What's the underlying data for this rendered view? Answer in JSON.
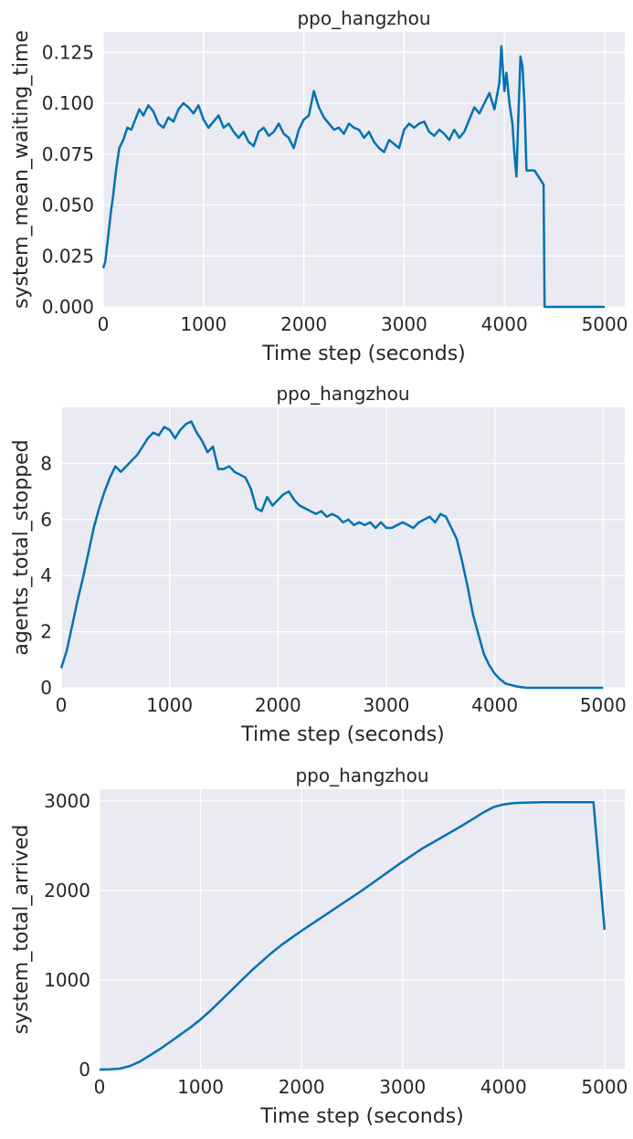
{
  "chart_data": [
    {
      "type": "line",
      "title": "ppo_hangzhou",
      "xlabel": "Time step (seconds)",
      "ylabel": "system_mean_waiting_time",
      "xlim": [
        0,
        5200
      ],
      "ylim": [
        0,
        0.135
      ],
      "xticks": [
        0,
        1000,
        2000,
        3000,
        4000,
        5000
      ],
      "xtick_labels": [
        "0",
        "1000",
        "2000",
        "3000",
        "4000",
        "5000"
      ],
      "yticks": [
        0,
        0.025,
        0.05,
        0.075,
        0.1,
        0.125
      ],
      "ytick_labels": [
        "0.000",
        "0.025",
        "0.050",
        "0.075",
        "0.100",
        "0.125"
      ],
      "grid": true,
      "color": "#0072b2",
      "series": [
        {
          "x": [
            0,
            20,
            50,
            80,
            100,
            130,
            160,
            200,
            240,
            280,
            320,
            360,
            400,
            450,
            500,
            550,
            600,
            650,
            700,
            750,
            800,
            850,
            900,
            950,
            1000,
            1050,
            1100,
            1150,
            1200,
            1250,
            1300,
            1350,
            1400,
            1450,
            1500,
            1550,
            1600,
            1650,
            1700,
            1750,
            1800,
            1850,
            1900,
            1950,
            2000,
            2050,
            2100,
            2150,
            2200,
            2250,
            2300,
            2350,
            2400,
            2450,
            2500,
            2550,
            2600,
            2650,
            2700,
            2750,
            2800,
            2850,
            2900,
            2950,
            3000,
            3050,
            3100,
            3150,
            3200,
            3250,
            3300,
            3350,
            3400,
            3450,
            3500,
            3550,
            3600,
            3650,
            3700,
            3750,
            3800,
            3850,
            3900,
            3950,
            3970,
            4000,
            4020,
            4050,
            4080,
            4100,
            4120,
            4140,
            4160,
            4180,
            4200,
            4220,
            4300,
            4390,
            4400,
            5000
          ],
          "y": [
            0.019,
            0.022,
            0.035,
            0.048,
            0.055,
            0.068,
            0.078,
            0.082,
            0.088,
            0.087,
            0.092,
            0.097,
            0.094,
            0.099,
            0.096,
            0.09,
            0.088,
            0.093,
            0.091,
            0.097,
            0.1,
            0.098,
            0.095,
            0.099,
            0.092,
            0.088,
            0.091,
            0.094,
            0.088,
            0.09,
            0.086,
            0.083,
            0.086,
            0.081,
            0.079,
            0.086,
            0.088,
            0.084,
            0.086,
            0.09,
            0.085,
            0.083,
            0.078,
            0.087,
            0.092,
            0.094,
            0.106,
            0.098,
            0.093,
            0.09,
            0.087,
            0.088,
            0.085,
            0.09,
            0.088,
            0.087,
            0.083,
            0.086,
            0.081,
            0.078,
            0.076,
            0.082,
            0.08,
            0.078,
            0.087,
            0.09,
            0.088,
            0.09,
            0.091,
            0.086,
            0.084,
            0.087,
            0.085,
            0.082,
            0.087,
            0.083,
            0.086,
            0.092,
            0.098,
            0.095,
            0.1,
            0.105,
            0.097,
            0.11,
            0.128,
            0.106,
            0.115,
            0.1,
            0.09,
            0.075,
            0.064,
            0.095,
            0.123,
            0.118,
            0.1,
            0.067,
            0.067,
            0.06,
            0.0,
            0.0
          ]
        }
      ]
    },
    {
      "type": "line",
      "title": "ppo_hangzhou",
      "xlabel": "Time step (seconds)",
      "ylabel": "agents_total_stopped",
      "xlim": [
        0,
        5200
      ],
      "ylim": [
        0,
        10
      ],
      "xticks": [
        0,
        1000,
        2000,
        3000,
        4000,
        5000
      ],
      "xtick_labels": [
        "0",
        "1000",
        "2000",
        "3000",
        "4000",
        "5000"
      ],
      "yticks": [
        0,
        2,
        4,
        6,
        8
      ],
      "ytick_labels": [
        "0",
        "2",
        "4",
        "6",
        "8"
      ],
      "grid": true,
      "color": "#0072b2",
      "series": [
        {
          "x": [
            0,
            50,
            100,
            150,
            200,
            250,
            300,
            350,
            400,
            450,
            500,
            550,
            600,
            650,
            700,
            750,
            800,
            850,
            900,
            950,
            1000,
            1050,
            1100,
            1150,
            1200,
            1250,
            1300,
            1350,
            1400,
            1450,
            1500,
            1550,
            1600,
            1650,
            1700,
            1750,
            1800,
            1850,
            1900,
            1950,
            2000,
            2050,
            2100,
            2150,
            2200,
            2250,
            2300,
            2350,
            2400,
            2450,
            2500,
            2550,
            2600,
            2650,
            2700,
            2750,
            2800,
            2850,
            2900,
            2950,
            3000,
            3050,
            3100,
            3150,
            3200,
            3250,
            3300,
            3350,
            3400,
            3450,
            3500,
            3550,
            3600,
            3650,
            3700,
            3750,
            3800,
            3850,
            3900,
            3950,
            4000,
            4050,
            4100,
            4150,
            4200,
            4250,
            4300,
            4400,
            5000
          ],
          "y": [
            0.7,
            1.3,
            2.2,
            3.1,
            3.9,
            4.8,
            5.7,
            6.4,
            7.0,
            7.5,
            7.9,
            7.7,
            7.9,
            8.1,
            8.3,
            8.6,
            8.9,
            9.1,
            9.0,
            9.3,
            9.2,
            8.9,
            9.2,
            9.4,
            9.5,
            9.1,
            8.8,
            8.4,
            8.6,
            7.8,
            7.8,
            7.9,
            7.7,
            7.6,
            7.5,
            7.1,
            6.4,
            6.3,
            6.8,
            6.5,
            6.7,
            6.9,
            7.0,
            6.7,
            6.5,
            6.4,
            6.3,
            6.2,
            6.3,
            6.1,
            6.2,
            6.1,
            5.9,
            6.0,
            5.8,
            5.9,
            5.8,
            5.9,
            5.7,
            5.9,
            5.7,
            5.7,
            5.8,
            5.9,
            5.8,
            5.7,
            5.9,
            6.0,
            6.1,
            5.9,
            6.2,
            6.1,
            5.7,
            5.3,
            4.5,
            3.6,
            2.6,
            1.9,
            1.2,
            0.8,
            0.5,
            0.3,
            0.15,
            0.1,
            0.05,
            0.02,
            0.0,
            0.0,
            0.0
          ]
        }
      ]
    },
    {
      "type": "line",
      "title": "ppo_hangzhou",
      "xlabel": "Time step (seconds)",
      "ylabel": "system_total_arrived",
      "xlim": [
        0,
        5200
      ],
      "ylim": [
        0,
        3130
      ],
      "xticks": [
        0,
        1000,
        2000,
        3000,
        4000,
        5000
      ],
      "xtick_labels": [
        "0",
        "1000",
        "2000",
        "3000",
        "4000",
        "5000"
      ],
      "yticks": [
        0,
        1000,
        2000,
        3000
      ],
      "ytick_labels": [
        "0",
        "1000",
        "2000",
        "3000"
      ],
      "grid": true,
      "color": "#0072b2",
      "series": [
        {
          "x": [
            0,
            100,
            200,
            300,
            400,
            500,
            600,
            700,
            800,
            900,
            1000,
            1100,
            1200,
            1300,
            1400,
            1500,
            1600,
            1700,
            1800,
            1900,
            2000,
            2200,
            2400,
            2600,
            2800,
            3000,
            3200,
            3400,
            3600,
            3700,
            3800,
            3900,
            4000,
            4100,
            4200,
            4400,
            4600,
            4800,
            4890,
            5000
          ],
          "y": [
            0,
            2,
            10,
            40,
            90,
            160,
            230,
            310,
            390,
            470,
            560,
            660,
            770,
            880,
            990,
            1100,
            1200,
            1300,
            1390,
            1470,
            1550,
            1700,
            1850,
            2000,
            2160,
            2320,
            2470,
            2600,
            2730,
            2800,
            2870,
            2930,
            2960,
            2975,
            2980,
            2985,
            2985,
            2985,
            2985,
            1560
          ]
        }
      ]
    }
  ]
}
